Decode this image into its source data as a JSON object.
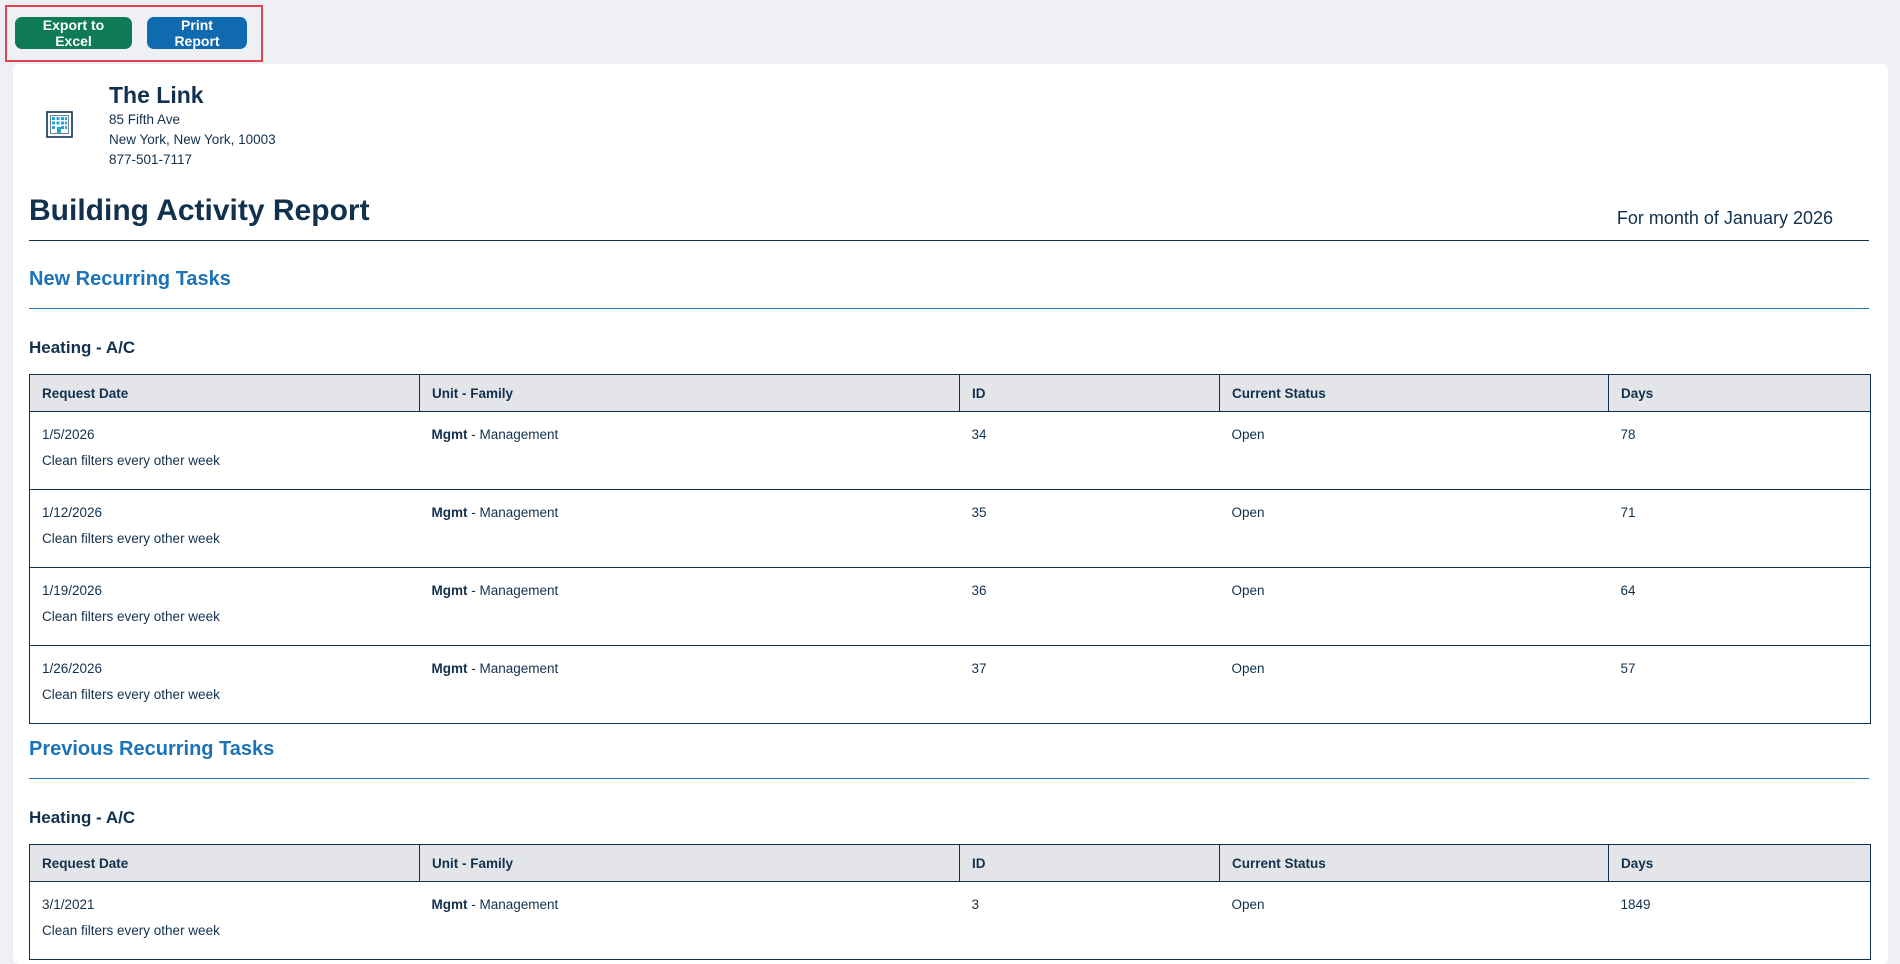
{
  "toolbar": {
    "export_label": "Export to Excel",
    "print_label": "Print Report"
  },
  "building": {
    "name": "The Link",
    "address1": "85 Fifth Ave",
    "address2": "New York, New York, 10003",
    "phone": "877-501-7117",
    "icon": "building-icon"
  },
  "report": {
    "title": "Building Activity Report",
    "month_label": "For month of January 2026"
  },
  "columns": [
    "Request Date",
    "Unit - Family",
    "ID",
    "Current Status",
    "Days"
  ],
  "new_section": {
    "title": "New Recurring Tasks",
    "group": "Heating - A/C",
    "rows": [
      {
        "date": "1/5/2026",
        "unit_code": "Mgmt",
        "unit_name": " - Management",
        "id": "34",
        "status": "Open",
        "days": "78",
        "desc": "Clean filters every other week"
      },
      {
        "date": "1/12/2026",
        "unit_code": "Mgmt",
        "unit_name": " - Management",
        "id": "35",
        "status": "Open",
        "days": "71",
        "desc": "Clean filters every other week"
      },
      {
        "date": "1/19/2026",
        "unit_code": "Mgmt",
        "unit_name": " - Management",
        "id": "36",
        "status": "Open",
        "days": "64",
        "desc": "Clean filters every other week"
      },
      {
        "date": "1/26/2026",
        "unit_code": "Mgmt",
        "unit_name": " - Management",
        "id": "37",
        "status": "Open",
        "days": "57",
        "desc": "Clean filters every other week"
      }
    ]
  },
  "prev_section": {
    "title": "Previous Recurring Tasks",
    "group": "Heating - A/C",
    "rows": [
      {
        "date": "3/1/2021",
        "unit_code": "Mgmt",
        "unit_name": " - Management",
        "id": "3",
        "status": "Open",
        "days": "1849",
        "desc": "Clean filters every other week"
      }
    ]
  },
  "colors": {
    "excel_button": "#0e7a57",
    "print_button": "#0f6ab0",
    "heading_navy": "#12314f",
    "section_blue": "#1c73b8",
    "highlight_border": "#e0444f"
  }
}
